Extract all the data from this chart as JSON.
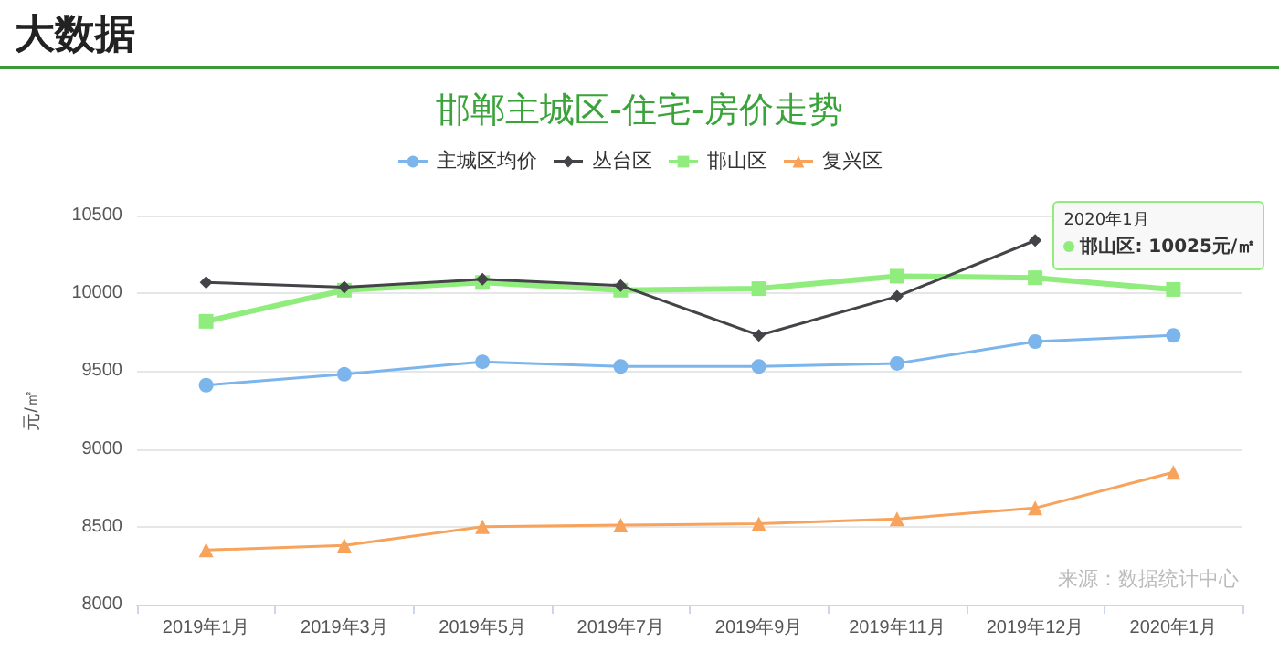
{
  "chart_data": {
    "type": "line",
    "title": "邯郸主城区-住宅-房价走势",
    "ylabel": "元/㎡",
    "categories": [
      "2019年1月",
      "2019年3月",
      "2019年5月",
      "2019年7月",
      "2019年9月",
      "2019年11月",
      "2019年12月",
      "2020年1月"
    ],
    "series": [
      {
        "name": "主城区均价",
        "color": "#7cb5ec",
        "marker": "circle",
        "values": [
          9410,
          9480,
          9560,
          9530,
          9530,
          9550,
          9690,
          9730
        ]
      },
      {
        "name": "丛台区",
        "color": "#434348",
        "marker": "diamond",
        "values": [
          10070,
          10040,
          10090,
          10050,
          9730,
          9980,
          10340,
          null
        ]
      },
      {
        "name": "邯山区",
        "color": "#90ed7d",
        "marker": "square",
        "values": [
          9820,
          10020,
          10070,
          10020,
          10030,
          10110,
          10100,
          10025
        ]
      },
      {
        "name": "复兴区",
        "color": "#f7a35c",
        "marker": "triangle",
        "values": [
          8350,
          8380,
          8500,
          8510,
          8520,
          8550,
          8620,
          8850
        ]
      }
    ],
    "ylim": [
      8000,
      10500
    ],
    "yticks": [
      8000,
      8500,
      9000,
      9500,
      10000,
      10500
    ],
    "grid": "y",
    "legend": "top",
    "annotations": [
      "大数据",
      "2020年1月",
      {
        "text": "邯山区: 10025元/㎡",
        "x": "2020年1月",
        "y": 10025
      },
      "来源：数据统计中心"
    ]
  }
}
